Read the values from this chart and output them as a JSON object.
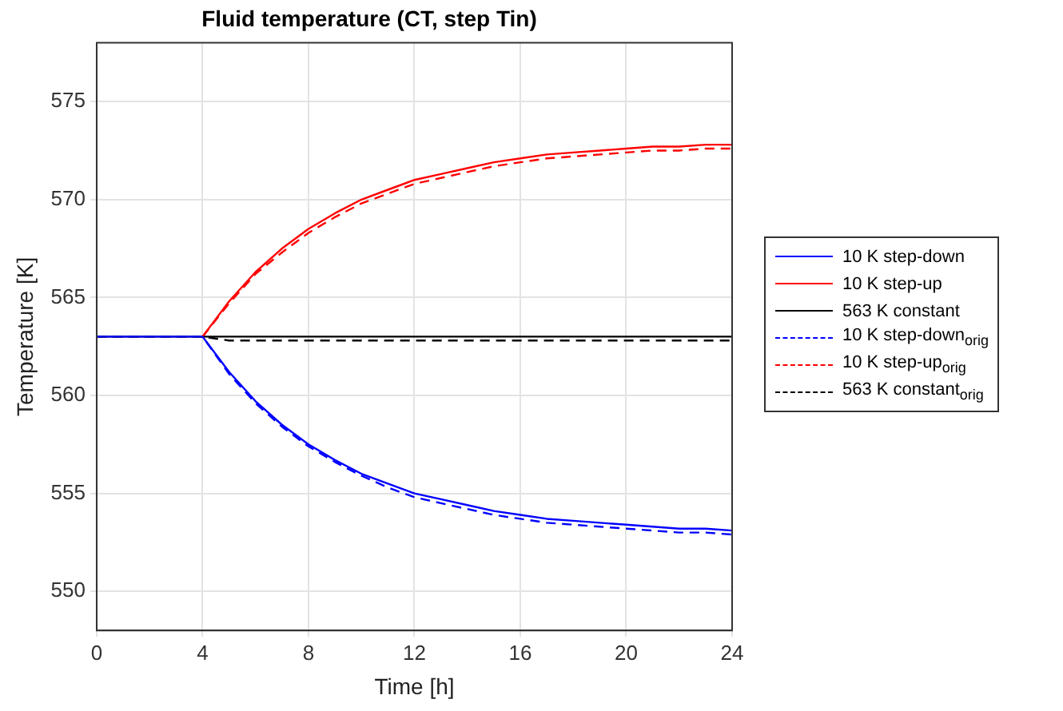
{
  "chart_data": {
    "type": "line",
    "title": "Fluid temperature (CT, step Tin)",
    "xlabel": "Time [h]",
    "ylabel": "Temperature [K]",
    "x": [
      0,
      4,
      5,
      6,
      7,
      8,
      9,
      10,
      11,
      12,
      13,
      14,
      15,
      16,
      17,
      18,
      19,
      20,
      21,
      22,
      23,
      24
    ],
    "series": [
      {
        "name": "10 K step-down",
        "color": "#0000ff",
        "line_style": "solid",
        "values": [
          563,
          563,
          561.2,
          559.7,
          558.5,
          557.5,
          556.7,
          556.0,
          555.5,
          555.0,
          554.7,
          554.4,
          554.1,
          553.9,
          553.7,
          553.6,
          553.5,
          553.4,
          553.3,
          553.2,
          553.2,
          553.1
        ]
      },
      {
        "name": "10 K step-up",
        "color": "#ff0000",
        "line_style": "solid",
        "values": [
          null,
          563,
          564.8,
          566.3,
          567.5,
          568.5,
          569.3,
          570.0,
          570.5,
          571.0,
          571.3,
          571.6,
          571.9,
          572.1,
          572.3,
          572.4,
          572.5,
          572.6,
          572.7,
          572.7,
          572.8,
          572.8
        ]
      },
      {
        "name": "563 K constant",
        "color": "#000000",
        "line_style": "solid",
        "values": [
          563,
          563,
          563,
          563,
          563,
          563,
          563,
          563,
          563,
          563,
          563,
          563,
          563,
          563,
          563,
          563,
          563,
          563,
          563,
          563,
          563,
          563
        ]
      },
      {
        "name": "10 K step-down$_{orig}$",
        "color": "#0000ff",
        "line_style": "dashed",
        "values": [
          563,
          563,
          561.1,
          559.6,
          558.4,
          557.4,
          556.6,
          555.9,
          555.3,
          554.8,
          554.5,
          554.2,
          553.9,
          553.7,
          553.5,
          553.4,
          553.3,
          553.2,
          553.1,
          553.0,
          553.0,
          552.9
        ]
      },
      {
        "name": "10 K step-up$_{orig}$",
        "color": "#ff0000",
        "line_style": "dashed",
        "values": [
          null,
          563,
          564.7,
          566.2,
          567.3,
          568.3,
          569.1,
          569.8,
          570.3,
          570.8,
          571.1,
          571.4,
          571.7,
          571.9,
          572.1,
          572.2,
          572.3,
          572.4,
          572.5,
          572.5,
          572.6,
          572.6
        ]
      },
      {
        "name": "563 K constant$_{orig}$",
        "color": "#000000",
        "line_style": "dashed",
        "values": [
          563,
          563,
          562.8,
          562.8,
          562.8,
          562.8,
          562.8,
          562.8,
          562.8,
          562.8,
          562.8,
          562.8,
          562.8,
          562.8,
          562.8,
          562.8,
          562.8,
          562.8,
          562.8,
          562.8,
          562.8,
          562.8
        ]
      }
    ],
    "xlim": [
      0,
      24
    ],
    "xticks": [
      0,
      4,
      8,
      12,
      16,
      20,
      24
    ],
    "ylim": [
      548,
      578
    ],
    "yticks": [
      550,
      555,
      560,
      565,
      570,
      575
    ],
    "grid": true,
    "legend": "right",
    "marker": "none"
  }
}
